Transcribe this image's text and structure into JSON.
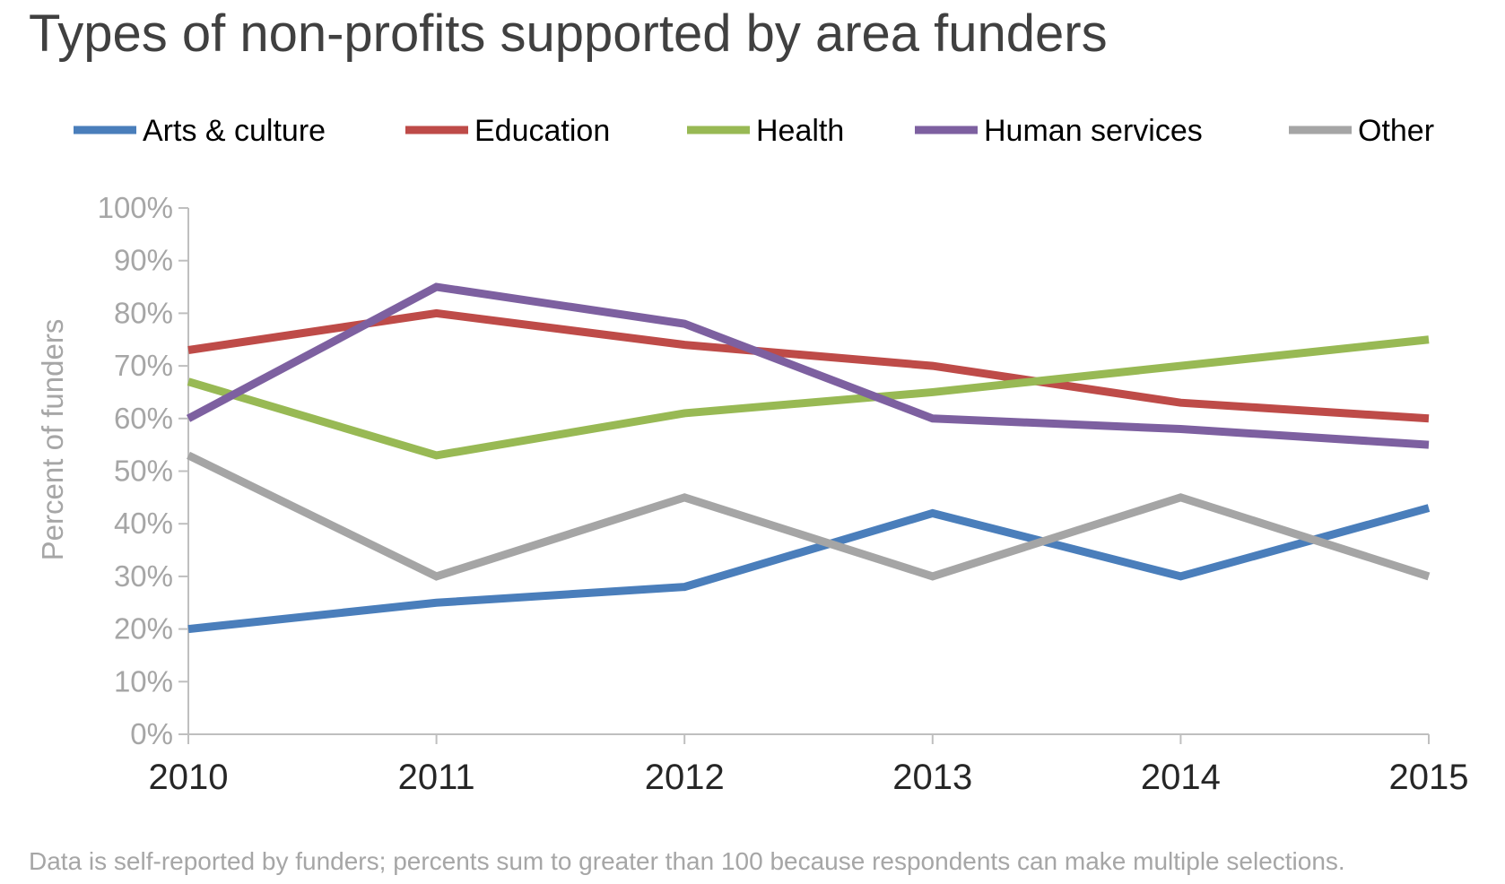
{
  "title": "Types of non-profits supported by area funders",
  "footnote": "Data is self-reported by funders; percents sum to greater than 100 because respondents can make multiple selections.",
  "chart_data": {
    "type": "line",
    "title": "Types of non-profits supported by area funders",
    "xlabel": "",
    "ylabel": "Percent of funders",
    "categories": [
      "2010",
      "2011",
      "2012",
      "2013",
      "2014",
      "2015"
    ],
    "yticks": [
      "0%",
      "10%",
      "20%",
      "30%",
      "40%",
      "50%",
      "60%",
      "70%",
      "80%",
      "90%",
      "100%"
    ],
    "ylim": [
      0,
      100
    ],
    "grid": false,
    "legend_position": "top",
    "series": [
      {
        "name": "Arts & culture",
        "color": "#4a7ebb",
        "values": [
          20,
          25,
          28,
          42,
          30,
          43
        ]
      },
      {
        "name": "Education",
        "color": "#be4b48",
        "values": [
          73,
          80,
          74,
          70,
          63,
          60
        ]
      },
      {
        "name": "Health",
        "color": "#98b954",
        "values": [
          67,
          53,
          61,
          65,
          70,
          75
        ]
      },
      {
        "name": "Human services",
        "color": "#7d60a0",
        "values": [
          60,
          85,
          78,
          60,
          58,
          55
        ]
      },
      {
        "name": "Other",
        "color": "#a5a5a5",
        "values": [
          53,
          30,
          45,
          30,
          45,
          30
        ]
      }
    ]
  }
}
